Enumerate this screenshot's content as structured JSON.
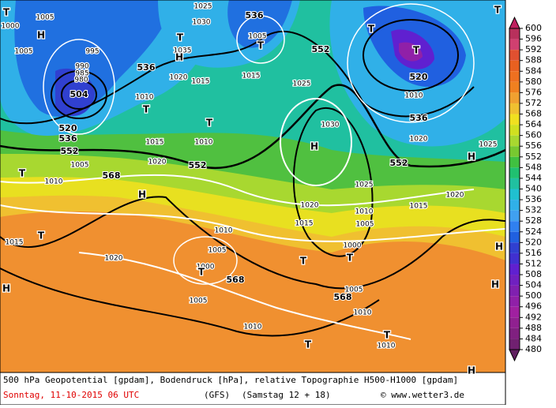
{
  "map": {
    "caption_line1": "500 hPa Geopotential [gpdam], Bodendruck [hPa], relative Topographie H500-H1000 [gpdam]",
    "date": "Sonntag, 11-10-2015  06 UTC",
    "model": "(GFS)",
    "run": "(Samstag 12 + 18)",
    "credit": "© www.wetter3.de",
    "legend": {
      "values": [
        600,
        596,
        592,
        588,
        584,
        580,
        576,
        572,
        568,
        564,
        560,
        556,
        552,
        548,
        544,
        540,
        536,
        532,
        528,
        524,
        520,
        516,
        512,
        508,
        504,
        500,
        496,
        492,
        488,
        484,
        480
      ],
      "colors": [
        "#b8305c",
        "#d04070",
        "#e05030",
        "#e86020",
        "#ee7020",
        "#f08020",
        "#f0a030",
        "#f0c030",
        "#f0e020",
        "#d0e020",
        "#a8d830",
        "#78c830",
        "#40c040",
        "#20c070",
        "#20c0a0",
        "#20c0d0",
        "#30b0e8",
        "#40a0f0",
        "#3080f0",
        "#2060e0",
        "#3040d0",
        "#4030d0",
        "#6020d0",
        "#7020c0",
        "#8020b0",
        "#9020a8",
        "#a020a0",
        "#902090",
        "#802080",
        "#702070"
      ]
    },
    "geopotential_labels": [
      536,
      536,
      552,
      520,
      536,
      552,
      552,
      520,
      536,
      552,
      504,
      568,
      568,
      568
    ],
    "isobar_labels": [
      1005,
      1030,
      1025,
      1035,
      1020,
      1015,
      1005,
      1015,
      1010,
      1025,
      1030,
      1015,
      1010,
      1020,
      1005,
      1010,
      1020,
      1010,
      1005,
      1000,
      1005,
      1010,
      1025,
      1020,
      1010,
      1005,
      1015,
      1000,
      1005,
      1010,
      1010,
      1020,
      1015,
      1010,
      1020,
      1025,
      1015,
      1000,
      1005,
      995,
      990,
      985,
      980
    ],
    "pressure_centers": [
      "T",
      "H",
      "T",
      "H",
      "T",
      "T",
      "T",
      "T",
      "T",
      "H",
      "T",
      "H",
      "T",
      "H",
      "H",
      "T",
      "T",
      "T",
      "T",
      "T",
      "H",
      "H",
      "H",
      "T"
    ]
  }
}
